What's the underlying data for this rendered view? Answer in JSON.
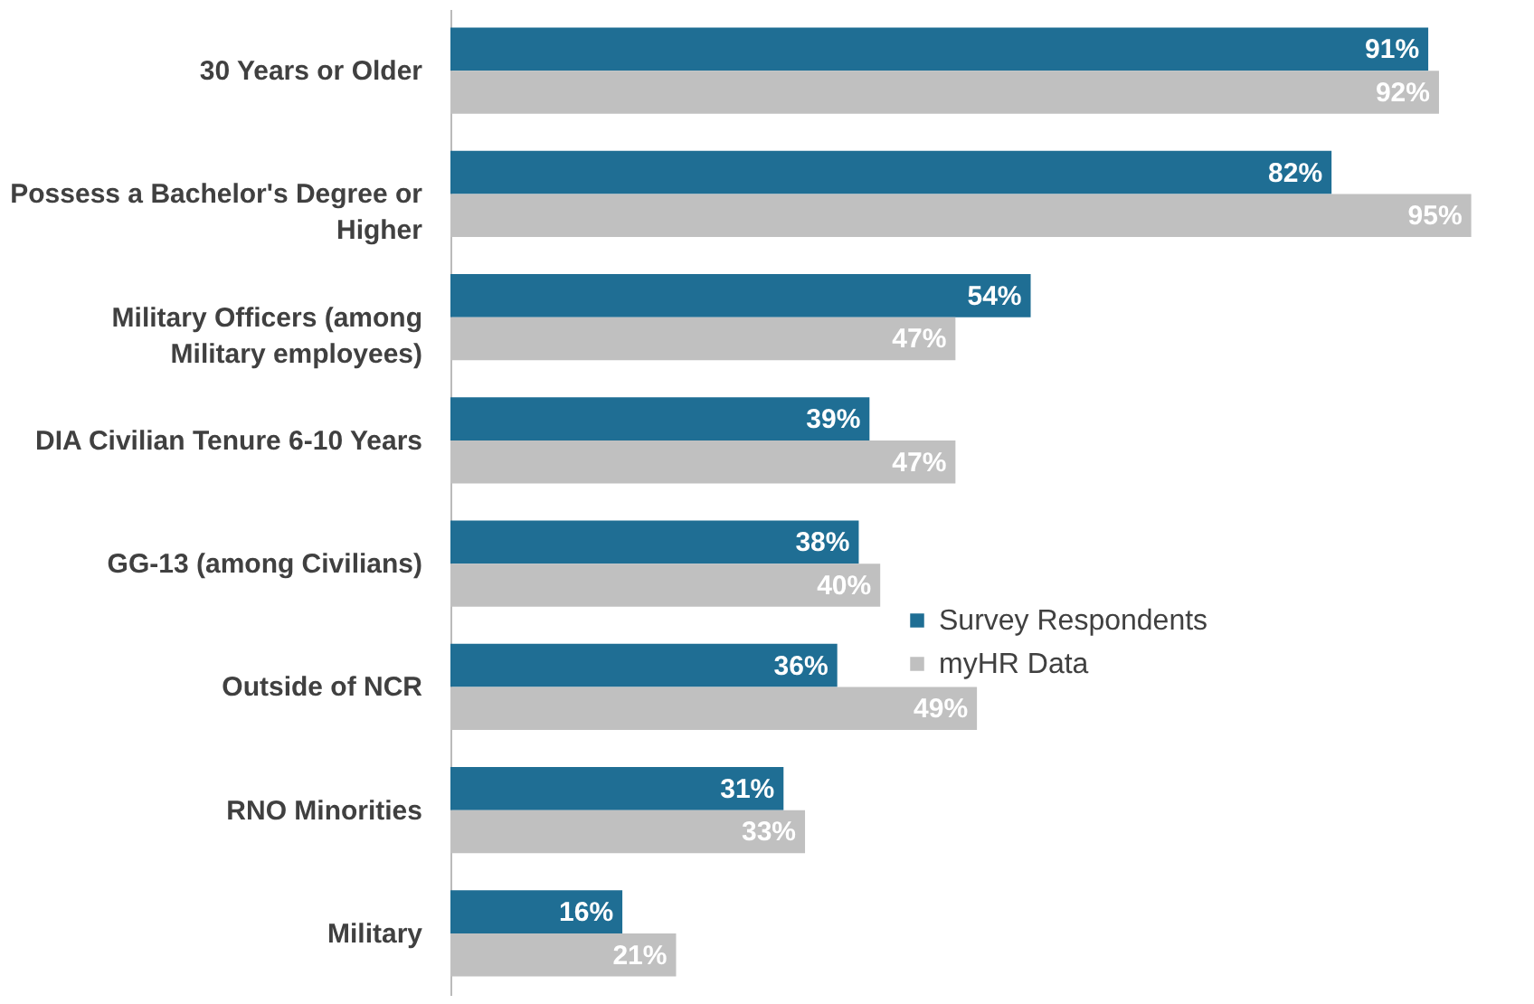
{
  "chart_data": {
    "type": "bar",
    "orientation": "horizontal",
    "categories": [
      "30 Years or Older",
      "Possess a Bachelor's Degree or Higher",
      "Military Officers (among Military employees)",
      "DIA Civilian Tenure 6-10 Years",
      "GG-13 (among Civilians)",
      "Outside of NCR",
      "RNO Minorities",
      "Military"
    ],
    "series": [
      {
        "name": "Survey Respondents",
        "color": "#1f6e94",
        "values": [
          91,
          82,
          54,
          39,
          38,
          36,
          31,
          16
        ],
        "value_labels": [
          "91%",
          "82%",
          "54%",
          "39%",
          "38%",
          "36%",
          "31%",
          "16%"
        ]
      },
      {
        "name": "myHR Data",
        "color": "#c0c0c0",
        "values": [
          92,
          95,
          47,
          47,
          40,
          49,
          33,
          21
        ],
        "value_labels": [
          "92%",
          "95%",
          "47%",
          "47%",
          "40%",
          "49%",
          "33%",
          "21%"
        ]
      }
    ],
    "tick_labels": "y",
    "legend": "right"
  }
}
